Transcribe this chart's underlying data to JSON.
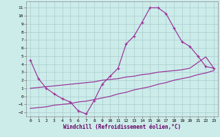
{
  "background_color": "#ccecea",
  "grid_color": "#aacccc",
  "line_color": "#993399",
  "xlabel": "Windchill (Refroidissement éolien,°C)",
  "xlim_min": -0.5,
  "xlim_max": 23.5,
  "ylim_min": -2.5,
  "ylim_max": 11.8,
  "xticks": [
    0,
    1,
    2,
    3,
    4,
    5,
    6,
    7,
    8,
    9,
    10,
    11,
    12,
    13,
    14,
    15,
    16,
    17,
    18,
    19,
    20,
    21,
    22,
    23
  ],
  "yticks": [
    -2,
    -1,
    0,
    1,
    2,
    3,
    4,
    5,
    6,
    7,
    8,
    9,
    10,
    11
  ],
  "hours": [
    0,
    1,
    2,
    3,
    4,
    5,
    6,
    7,
    8,
    9,
    10,
    11,
    12,
    13,
    14,
    15,
    16,
    17,
    18,
    19,
    20,
    21,
    22,
    23
  ],
  "main": [
    4.5,
    2.2,
    1.0,
    0.3,
    -0.3,
    -0.7,
    -1.8,
    -2.2,
    -0.5,
    1.5,
    2.5,
    3.5,
    6.5,
    7.5,
    9.2,
    11.0,
    11.0,
    10.3,
    8.5,
    6.8,
    6.2,
    5.0,
    3.7,
    3.5
  ],
  "line2": [
    1.0,
    1.1,
    1.2,
    1.3,
    1.4,
    1.5,
    1.6,
    1.7,
    1.8,
    2.0,
    2.1,
    2.2,
    2.4,
    2.5,
    2.7,
    2.8,
    3.0,
    3.1,
    3.2,
    3.3,
    3.5,
    4.2,
    4.9,
    3.5
  ],
  "line3": [
    -1.5,
    -1.4,
    -1.3,
    -1.1,
    -1.0,
    -0.9,
    -0.7,
    -0.6,
    -0.4,
    -0.2,
    0.0,
    0.3,
    0.5,
    0.8,
    1.0,
    1.2,
    1.5,
    1.7,
    2.0,
    2.2,
    2.4,
    2.7,
    2.9,
    3.2
  ]
}
